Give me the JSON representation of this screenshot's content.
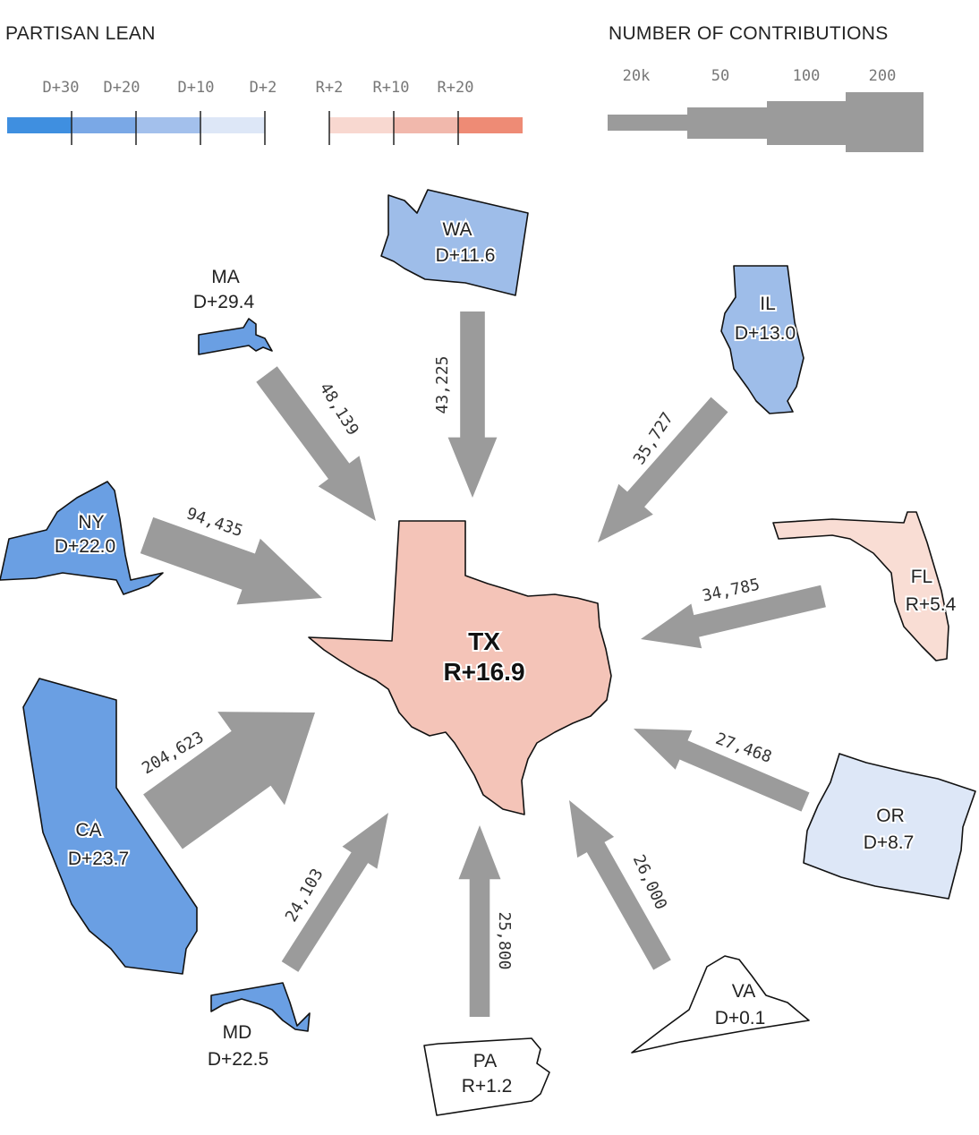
{
  "legend": {
    "partisan_title": "PARTISAN LEAN",
    "partisan_ticks": [
      "D+30",
      "D+20",
      "D+10",
      "D+2",
      "R+2",
      "R+10",
      "R+20"
    ],
    "partisan_colors": [
      "#3f8fe0",
      "#7aa8e6",
      "#a3c0ec",
      "#dde7f7",
      "#ffffff",
      "#f8d8d0",
      "#f1b8ac",
      "#ee8b75"
    ],
    "contrib_title": "NUMBER OF CONTRIBUTIONS",
    "contrib_ticks": [
      "20k",
      "50",
      "100",
      "200"
    ],
    "contrib_color": "#9b9b9b"
  },
  "center": {
    "abbr": "TX",
    "lean": "R+16.9",
    "color": "#f4c4b8"
  },
  "states": [
    {
      "abbr": "WA",
      "lean": "D+11.6",
      "color": "#9ebde9"
    },
    {
      "abbr": "MA",
      "lean": "D+29.4",
      "color": "#6a9fe3"
    },
    {
      "abbr": "IL",
      "lean": "D+13.0",
      "color": "#9ebde9"
    },
    {
      "abbr": "NY",
      "lean": "D+22.0",
      "color": "#6a9fe3"
    },
    {
      "abbr": "FL",
      "lean": "R+5.4",
      "color": "#f9ddd4"
    },
    {
      "abbr": "CA",
      "lean": "D+23.7",
      "color": "#6a9fe3"
    },
    {
      "abbr": "OR",
      "lean": "D+8.7",
      "color": "#dde7f7"
    },
    {
      "abbr": "MD",
      "lean": "D+22.5",
      "color": "#6a9fe3"
    },
    {
      "abbr": "PA",
      "lean": "R+1.2",
      "color": "#ffffff"
    },
    {
      "abbr": "VA",
      "lean": "D+0.1",
      "color": "#ffffff"
    }
  ],
  "flows": [
    {
      "from": "WA",
      "to": "TX",
      "contributions": 43225,
      "label": "43,225"
    },
    {
      "from": "MA",
      "to": "TX",
      "contributions": 48139,
      "label": "48,139"
    },
    {
      "from": "IL",
      "to": "TX",
      "contributions": 35727,
      "label": "35,727"
    },
    {
      "from": "NY",
      "to": "TX",
      "contributions": 94435,
      "label": "94,435"
    },
    {
      "from": "FL",
      "to": "TX",
      "contributions": 34785,
      "label": "34,785"
    },
    {
      "from": "CA",
      "to": "TX",
      "contributions": 204623,
      "label": "204,623"
    },
    {
      "from": "OR",
      "to": "TX",
      "contributions": 27468,
      "label": "27,468"
    },
    {
      "from": "MD",
      "to": "TX",
      "contributions": 24103,
      "label": "24,103"
    },
    {
      "from": "PA",
      "to": "TX",
      "contributions": 25800,
      "label": "25,800"
    },
    {
      "from": "VA",
      "to": "TX",
      "contributions": 26000,
      "label": "26,000"
    }
  ]
}
